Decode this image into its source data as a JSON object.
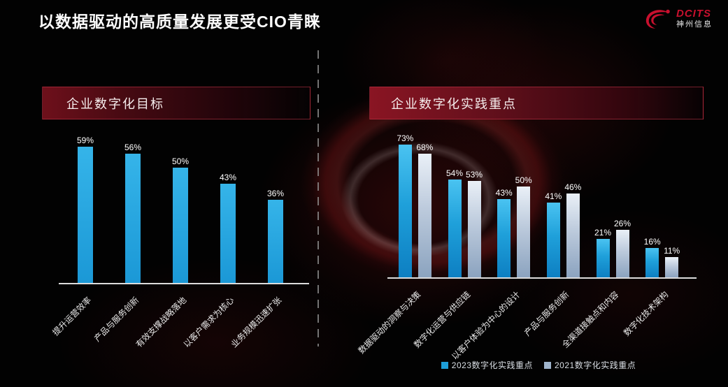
{
  "title": "以数据驱动的高质量发展更受CIO青睐",
  "logo": {
    "brand": "DCITS",
    "subtitle": "神州信息",
    "color": "#c8102e"
  },
  "theme": {
    "background": "#020202",
    "accent_red": "#8a1523",
    "bar_blue": "#1d9ed9",
    "bar_gray": "#aabdd3",
    "text": "#ffffff"
  },
  "chart_data": [
    {
      "type": "bar",
      "title": "企业数字化目标",
      "categories": [
        "提升运营效率",
        "产品与服务创新",
        "有效支撑战略落地",
        "以客户需求为核心",
        "业务规模迅速扩张"
      ],
      "values": [
        59,
        56,
        50,
        43,
        36
      ],
      "unit": "%",
      "xlabel": "",
      "ylabel": "",
      "ylim": [
        0,
        65
      ],
      "grid": false,
      "data_labels": true,
      "bar_color": "#1d9ed9",
      "legend_position": "none"
    },
    {
      "type": "bar",
      "title": "企业数字化实践重点",
      "categories": [
        "数据驱动的洞察与决策",
        "数字化运营与供应链",
        "以客户体验为中心的设计",
        "产品与服务创新",
        "全渠道接触点和内容",
        "数字化技术架构"
      ],
      "series": [
        {
          "name": "2023数字化实践重点",
          "values": [
            73,
            54,
            43,
            41,
            21,
            16
          ],
          "color": "#1d9ed9"
        },
        {
          "name": "2021数字化实践重点",
          "values": [
            68,
            53,
            50,
            46,
            26,
            11
          ],
          "color": "#9fb4cc"
        }
      ],
      "unit": "%",
      "xlabel": "",
      "ylabel": "",
      "ylim": [
        0,
        80
      ],
      "grid": false,
      "data_labels": true,
      "legend_position": "bottom"
    }
  ]
}
